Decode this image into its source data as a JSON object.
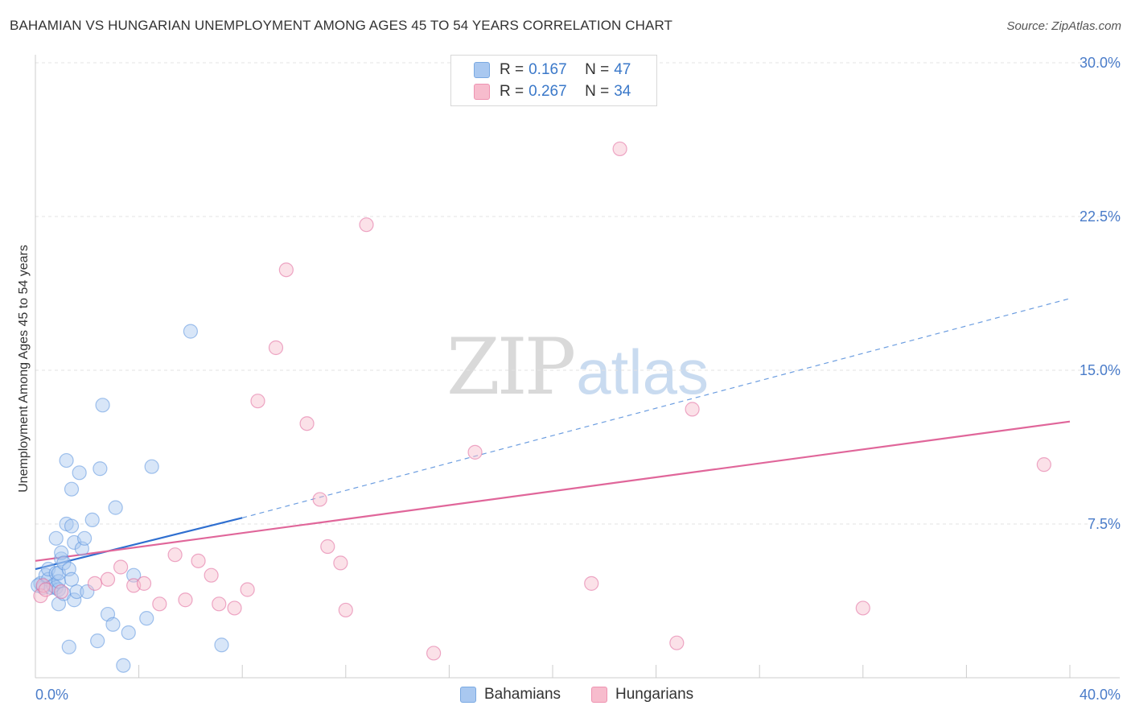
{
  "title": "BAHAMIAN VS HUNGARIAN UNEMPLOYMENT AMONG AGES 45 TO 54 YEARS CORRELATION CHART",
  "source": "Source: ZipAtlas.com",
  "watermark": {
    "zip": "ZIP",
    "atlas": "atlas"
  },
  "legend": {
    "rows": [
      {
        "r_label": "R =",
        "r_value": "0.167",
        "n_label": "N =",
        "n_value": "47",
        "color": "#a9c8f0"
      },
      {
        "r_label": "R =",
        "r_value": "0.267",
        "n_label": "N =",
        "n_value": "34",
        "color": "#f7bccd"
      }
    ]
  },
  "bottom_legend": [
    {
      "label": "Bahamians",
      "color": "#a9c8f0"
    },
    {
      "label": "Hungarians",
      "color": "#f7bccd"
    }
  ],
  "chart_data": {
    "type": "scatter",
    "title": "BAHAMIAN VS HUNGARIAN UNEMPLOYMENT AMONG AGES 45 TO 54 YEARS CORRELATION CHART",
    "xlabel": "",
    "ylabel": "Unemployment Among Ages 45 to 54 years",
    "xlim": [
      0,
      40
    ],
    "ylim": [
      0,
      30
    ],
    "x_tick_labels": [
      "0.0%",
      "40.0%"
    ],
    "y_ticks": [
      7.5,
      15.0,
      22.5,
      30.0
    ],
    "y_tick_labels": [
      "7.5%",
      "15.0%",
      "22.5%",
      "30.0%"
    ],
    "grid": true,
    "series": [
      {
        "name": "Bahamians",
        "color": "#5b93de",
        "fill": "#a9c8f0",
        "trend": {
          "x": [
            0,
            8
          ],
          "y": [
            5.3,
            7.8
          ],
          "dashed_extension_to": [
            40,
            18.5
          ]
        },
        "points": [
          [
            0.2,
            4.6
          ],
          [
            0.3,
            4.4
          ],
          [
            0.4,
            5.0
          ],
          [
            0.5,
            4.8
          ],
          [
            0.6,
            4.4
          ],
          [
            0.5,
            5.3
          ],
          [
            0.7,
            4.5
          ],
          [
            0.8,
            4.4
          ],
          [
            0.8,
            5.1
          ],
          [
            0.9,
            4.3
          ],
          [
            0.9,
            3.6
          ],
          [
            0.9,
            4.7
          ],
          [
            0.9,
            5.1
          ],
          [
            0.8,
            6.8
          ],
          [
            1.0,
            5.8
          ],
          [
            1.0,
            6.1
          ],
          [
            1.1,
            4.1
          ],
          [
            1.1,
            5.6
          ],
          [
            1.2,
            7.5
          ],
          [
            1.2,
            10.6
          ],
          [
            1.3,
            1.5
          ],
          [
            1.3,
            5.3
          ],
          [
            1.4,
            4.8
          ],
          [
            1.4,
            7.4
          ],
          [
            1.4,
            9.2
          ],
          [
            1.5,
            3.8
          ],
          [
            1.5,
            6.6
          ],
          [
            1.6,
            4.2
          ],
          [
            1.7,
            10.0
          ],
          [
            1.8,
            6.3
          ],
          [
            1.9,
            6.8
          ],
          [
            2.0,
            4.2
          ],
          [
            2.2,
            7.7
          ],
          [
            2.4,
            1.8
          ],
          [
            2.5,
            10.2
          ],
          [
            2.6,
            13.3
          ],
          [
            2.8,
            3.1
          ],
          [
            3.0,
            2.6
          ],
          [
            3.1,
            8.3
          ],
          [
            3.4,
            0.6
          ],
          [
            3.6,
            2.2
          ],
          [
            3.8,
            5.0
          ],
          [
            4.3,
            2.9
          ],
          [
            4.5,
            10.3
          ],
          [
            6.0,
            16.9
          ],
          [
            7.2,
            1.6
          ],
          [
            0.1,
            4.5
          ]
        ]
      },
      {
        "name": "Hungarians",
        "color": "#e0669a",
        "fill": "#f7bccd",
        "trend": {
          "x": [
            0,
            40
          ],
          "y": [
            5.7,
            12.5
          ]
        },
        "points": [
          [
            0.2,
            4.0
          ],
          [
            0.3,
            4.5
          ],
          [
            0.4,
            4.3
          ],
          [
            1.0,
            4.2
          ],
          [
            2.3,
            4.6
          ],
          [
            2.8,
            4.8
          ],
          [
            3.3,
            5.4
          ],
          [
            3.8,
            4.5
          ],
          [
            4.2,
            4.6
          ],
          [
            4.8,
            3.6
          ],
          [
            5.4,
            6.0
          ],
          [
            5.8,
            3.8
          ],
          [
            6.3,
            5.7
          ],
          [
            6.8,
            5.0
          ],
          [
            7.1,
            3.6
          ],
          [
            7.7,
            3.4
          ],
          [
            8.2,
            4.3
          ],
          [
            8.6,
            13.5
          ],
          [
            9.3,
            16.1
          ],
          [
            9.7,
            19.9
          ],
          [
            10.5,
            12.4
          ],
          [
            11.0,
            8.7
          ],
          [
            11.3,
            6.4
          ],
          [
            11.8,
            5.6
          ],
          [
            12.0,
            3.3
          ],
          [
            12.8,
            22.1
          ],
          [
            15.4,
            1.2
          ],
          [
            17.0,
            11.0
          ],
          [
            21.5,
            4.6
          ],
          [
            22.6,
            25.8
          ],
          [
            24.8,
            1.7
          ],
          [
            25.4,
            13.1
          ],
          [
            32.0,
            3.4
          ],
          [
            39.0,
            10.4
          ]
        ]
      }
    ]
  }
}
